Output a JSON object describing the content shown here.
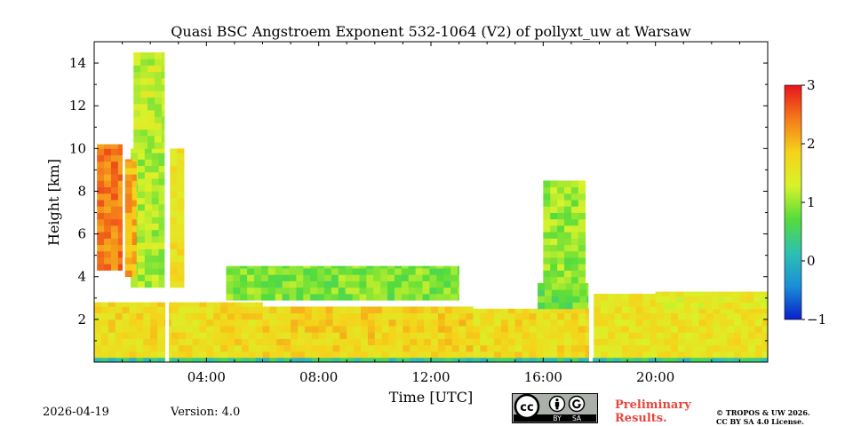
{
  "chart_data": {
    "type": "heatmap",
    "title": "Quasi BSC Angstroem Exponent 532-1064 (V2) of pollyxt_uw at Warsaw",
    "xlabel": "Time [UTC]",
    "ylabel": "Height [km]",
    "xlim_hours": [
      0,
      24
    ],
    "ylim_km": [
      0,
      15
    ],
    "x_ticks": [
      {
        "h": 4,
        "label": "04:00"
      },
      {
        "h": 8,
        "label": "08:00"
      },
      {
        "h": 12,
        "label": "12:00"
      },
      {
        "h": 16,
        "label": "16:00"
      },
      {
        "h": 20,
        "label": "20:00"
      }
    ],
    "y_ticks": [
      {
        "v": 2,
        "label": "2"
      },
      {
        "v": 4,
        "label": "4"
      },
      {
        "v": 6,
        "label": "6"
      },
      {
        "v": 8,
        "label": "8"
      },
      {
        "v": 10,
        "label": "10"
      },
      {
        "v": 12,
        "label": "12"
      },
      {
        "v": 14,
        "label": "14"
      }
    ],
    "colorbar": {
      "min": -1,
      "max": 3,
      "ticks": [
        {
          "v": 3,
          "label": "3"
        },
        {
          "v": 2,
          "label": "2"
        },
        {
          "v": 1,
          "label": "1"
        },
        {
          "v": 0,
          "label": "0"
        },
        {
          "v": -1,
          "label": "−1"
        }
      ],
      "colormap": [
        "#0a1fc9",
        "#1a8fd8",
        "#2fc0b0",
        "#55dc3c",
        "#d9f22a",
        "#f5d31a",
        "#f47a1a",
        "#e8141c"
      ]
    },
    "data_gaps_hours": [
      2.6,
      17.7
    ],
    "regions": [
      {
        "name": "boundary-layer-early",
        "t0": 0.0,
        "t1": 6.0,
        "z0": 0.2,
        "z1": 2.8,
        "value": 1.7
      },
      {
        "name": "boundary-layer-mid",
        "t0": 6.0,
        "t1": 13.5,
        "z0": 0.2,
        "z1": 2.6,
        "value": 1.8
      },
      {
        "name": "boundary-layer-afternoon",
        "t0": 13.5,
        "t1": 17.7,
        "z0": 0.2,
        "z1": 2.5,
        "value": 1.7
      },
      {
        "name": "boundary-layer-evening",
        "t0": 17.8,
        "t1": 24.0,
        "z0": 0.2,
        "z1": 3.2,
        "value": 1.6
      },
      {
        "name": "surface-layer",
        "t0": 0.0,
        "t1": 24.0,
        "z0": 0.0,
        "z1": 0.2,
        "value": 0.3
      },
      {
        "name": "aerosol-layer-red",
        "t0": 0.1,
        "t1": 1.0,
        "z0": 4.3,
        "z1": 10.2,
        "value": 2.4
      },
      {
        "name": "aerosol-layer-tower",
        "t0": 1.3,
        "t1": 2.5,
        "z0": 3.5,
        "z1": 10.0,
        "value": 1.1
      },
      {
        "name": "aerosol-layer-tower-edge",
        "t0": 1.1,
        "t1": 1.5,
        "z0": 4.0,
        "z1": 9.5,
        "value": 2.1
      },
      {
        "name": "cirrus-upper",
        "t0": 1.4,
        "t1": 2.5,
        "z0": 10.0,
        "z1": 14.5,
        "value": 1.2
      },
      {
        "name": "plume-after-gap",
        "t0": 2.7,
        "t1": 3.2,
        "z0": 3.5,
        "z1": 10.0,
        "value": 1.6
      },
      {
        "name": "green-layer-day",
        "t0": 4.7,
        "t1": 13.0,
        "z0": 2.9,
        "z1": 4.5,
        "value": 0.9
      },
      {
        "name": "cloud-top-afternoon",
        "t0": 15.8,
        "t1": 17.6,
        "z0": 2.5,
        "z1": 3.7,
        "value": 0.8
      },
      {
        "name": "sparse-upper-afternoon",
        "t0": 16.0,
        "t1": 17.5,
        "z0": 3.7,
        "z1": 8.5,
        "value": 1.0
      },
      {
        "name": "evening-step",
        "t0": 20.0,
        "t1": 24.0,
        "z0": 2.5,
        "z1": 3.3,
        "value": 1.5
      }
    ]
  },
  "footer": {
    "date": "2026-04-19",
    "version": "Version: 4.0",
    "preliminary_line1": "Preliminary",
    "preliminary_line2": "Results.",
    "copyright_line1": "© TROPOS & UW 2026.",
    "copyright_line2": "CC BY SA 4.0 License.",
    "cc_badge": {
      "cc": "cc",
      "by": "BY",
      "sa": "SA"
    }
  }
}
